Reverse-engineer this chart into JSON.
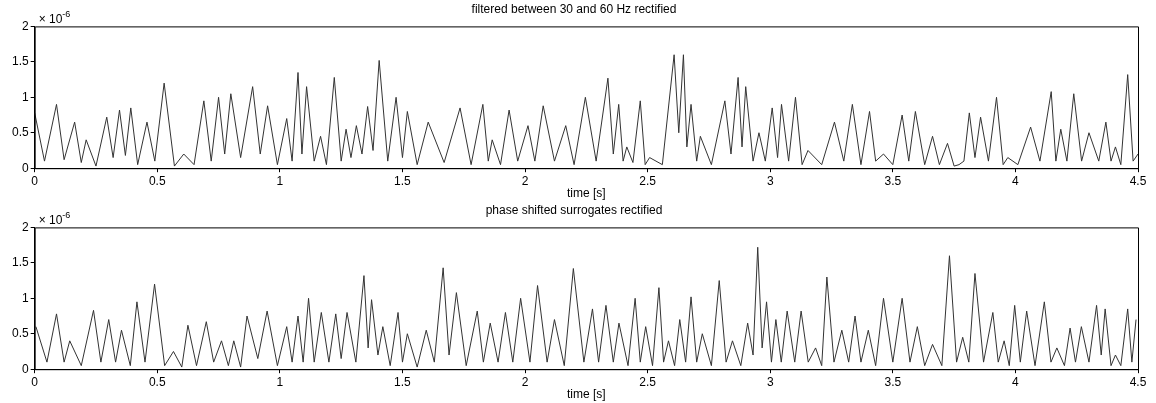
{
  "chart_data": [
    {
      "type": "line",
      "title": "filtered between 30 and 60 Hz rectified",
      "xlabel": "time [s]",
      "annotations": [
        "× 10$^{-6}$"
      ],
      "x": [
        0,
        0.04,
        0.089,
        0.12,
        0.163,
        0.19,
        0.21,
        0.25,
        0.294,
        0.32,
        0.346,
        0.37,
        0.392,
        0.42,
        0.458,
        0.49,
        0.528,
        0.57,
        0.608,
        0.65,
        0.69,
        0.72,
        0.75,
        0.775,
        0.8,
        0.84,
        0.889,
        0.92,
        0.95,
        0.99,
        1.028,
        1.05,
        1.074,
        1.09,
        1.109,
        1.14,
        1.166,
        1.19,
        1.222,
        1.25,
        1.27,
        1.29,
        1.312,
        1.335,
        1.358,
        1.38,
        1.405,
        1.44,
        1.474,
        1.5,
        1.52,
        1.56,
        1.605,
        1.67,
        1.735,
        1.78,
        1.828,
        1.85,
        1.866,
        1.9,
        1.935,
        1.97,
        2.012,
        2.04,
        2.074,
        2.12,
        2.166,
        2.2,
        2.246,
        2.29,
        2.338,
        2.36,
        2.382,
        2.4,
        2.415,
        2.44,
        2.47,
        2.49,
        2.508,
        2.56,
        2.608,
        2.627,
        2.646,
        2.66,
        2.677,
        2.7,
        2.715,
        2.76,
        2.815,
        2.84,
        2.869,
        2.885,
        2.9,
        2.93,
        2.954,
        2.98,
        3.008,
        3.03,
        3.046,
        3.075,
        3.103,
        3.13,
        3.154,
        3.21,
        3.262,
        3.3,
        3.335,
        3.37,
        3.405,
        3.43,
        3.462,
        3.5,
        3.538,
        3.565,
        3.592,
        3.63,
        3.662,
        3.69,
        3.723,
        3.75,
        3.77,
        3.79,
        3.812,
        3.835,
        3.858,
        3.89,
        3.923,
        3.95,
        3.969,
        4.01,
        4.062,
        4.1,
        4.146,
        4.165,
        4.185,
        4.21,
        4.238,
        4.27,
        4.3,
        4.34,
        4.369,
        4.39,
        4.408,
        4.43,
        4.458,
        4.48,
        4.5
      ],
      "series": [
        {
          "color": "#333333",
          "values": [
            0.78,
            0.1,
            0.9,
            0.12,
            0.65,
            0.08,
            0.4,
            0.03,
            0.72,
            0.15,
            0.82,
            0.18,
            0.85,
            0.05,
            0.65,
            0.1,
            1.2,
            0.03,
            0.2,
            0.05,
            0.95,
            0.1,
            1.0,
            0.2,
            1.05,
            0.15,
            1.15,
            0.2,
            0.88,
            0.05,
            0.7,
            0.1,
            1.35,
            0.2,
            1.15,
            0.1,
            0.45,
            0.05,
            1.28,
            0.1,
            0.55,
            0.15,
            0.6,
            0.2,
            0.87,
            0.25,
            1.52,
            0.1,
            1.0,
            0.15,
            0.8,
            0.05,
            0.65,
            0.08,
            0.85,
            0.05,
            0.9,
            0.1,
            0.4,
            0.05,
            0.82,
            0.1,
            0.6,
            0.1,
            0.88,
            0.1,
            0.6,
            0.05,
            1.0,
            0.1,
            1.27,
            0.2,
            0.9,
            0.1,
            0.3,
            0.08,
            0.95,
            0.05,
            0.15,
            0.05,
            1.6,
            0.5,
            1.6,
            0.3,
            0.9,
            0.1,
            0.45,
            0.05,
            0.95,
            0.2,
            1.28,
            0.3,
            1.15,
            0.1,
            0.5,
            0.1,
            0.85,
            0.15,
            0.9,
            0.1,
            1.0,
            0.05,
            0.25,
            0.05,
            0.65,
            0.1,
            0.9,
            0.05,
            0.8,
            0.1,
            0.2,
            0.05,
            0.75,
            0.1,
            0.8,
            0.05,
            0.45,
            0.05,
            0.35,
            0.03,
            0.05,
            0.1,
            0.78,
            0.15,
            0.72,
            0.1,
            1.0,
            0.05,
            0.15,
            0.05,
            0.58,
            0.1,
            1.08,
            0.1,
            0.55,
            0.1,
            1.05,
            0.1,
            0.5,
            0.1,
            0.65,
            0.1,
            0.3,
            0.05,
            1.32,
            0.1,
            0.2
          ]
        }
      ],
      "xlim": [
        0,
        4.5
      ],
      "xticks": [
        0,
        0.5,
        1,
        1.5,
        2,
        2.5,
        3,
        3.5,
        4,
        4.5
      ],
      "ylim": [
        0,
        2
      ],
      "yticks": [
        0,
        0.5,
        1,
        1.5,
        2
      ],
      "grid": false,
      "legend": false,
      "marker": "none",
      "line_style": "solid"
    },
    {
      "type": "line",
      "title": "phase shifted surrogates rectified",
      "xlabel": "time [s]",
      "annotations": [
        "× 10$^{-6}$"
      ],
      "x": [
        0.005,
        0.05,
        0.089,
        0.12,
        0.143,
        0.19,
        0.24,
        0.27,
        0.302,
        0.33,
        0.354,
        0.39,
        0.417,
        0.45,
        0.489,
        0.53,
        0.566,
        0.6,
        0.625,
        0.66,
        0.7,
        0.73,
        0.762,
        0.79,
        0.812,
        0.84,
        0.866,
        0.91,
        0.948,
        0.99,
        1.028,
        1.05,
        1.074,
        1.095,
        1.117,
        1.14,
        1.169,
        1.2,
        1.228,
        1.25,
        1.274,
        1.31,
        1.343,
        1.36,
        1.374,
        1.4,
        1.42,
        1.45,
        1.482,
        1.5,
        1.52,
        1.56,
        1.597,
        1.63,
        1.666,
        1.69,
        1.72,
        1.76,
        1.805,
        1.83,
        1.858,
        1.89,
        1.92,
        1.95,
        1.982,
        2.02,
        2.051,
        2.09,
        2.12,
        2.16,
        2.197,
        2.24,
        2.275,
        2.3,
        2.33,
        2.36,
        2.383,
        2.42,
        2.449,
        2.47,
        2.492,
        2.52,
        2.546,
        2.565,
        2.585,
        2.61,
        2.631,
        2.655,
        2.677,
        2.7,
        2.723,
        2.76,
        2.792,
        2.82,
        2.846,
        2.88,
        2.908,
        2.93,
        2.949,
        2.967,
        2.985,
        3.005,
        3.023,
        3.045,
        3.069,
        3.1,
        3.126,
        3.155,
        3.185,
        3.21,
        3.231,
        3.26,
        3.292,
        3.32,
        3.346,
        3.37,
        3.4,
        3.43,
        3.462,
        3.5,
        3.538,
        3.57,
        3.6,
        3.63,
        3.662,
        3.7,
        3.731,
        3.76,
        3.785,
        3.81,
        3.835,
        3.87,
        3.908,
        3.93,
        3.954,
        3.975,
        3.997,
        4.02,
        4.046,
        4.08,
        4.118,
        4.145,
        4.169,
        4.2,
        4.223,
        4.245,
        4.269,
        4.3,
        4.331,
        4.35,
        4.366,
        4.39,
        4.408,
        4.43,
        4.458,
        4.475,
        4.492
      ],
      "series": [
        {
          "color": "#333333",
          "values": [
            0.6,
            0.1,
            0.78,
            0.1,
            0.4,
            0.05,
            0.83,
            0.1,
            0.7,
            0.1,
            0.55,
            0.05,
            0.95,
            0.1,
            1.2,
            0.05,
            0.25,
            0.03,
            0.62,
            0.05,
            0.67,
            0.1,
            0.4,
            0.05,
            0.4,
            0.03,
            0.75,
            0.15,
            0.82,
            0.05,
            0.6,
            0.1,
            0.75,
            0.1,
            1.0,
            0.1,
            0.8,
            0.1,
            0.78,
            0.15,
            0.8,
            0.1,
            1.32,
            0.3,
            0.98,
            0.2,
            0.6,
            0.05,
            0.8,
            0.1,
            0.5,
            0.03,
            0.55,
            0.1,
            1.43,
            0.2,
            1.08,
            0.05,
            0.82,
            0.1,
            0.65,
            0.1,
            0.8,
            0.1,
            1.0,
            0.1,
            1.18,
            0.1,
            0.7,
            0.05,
            1.42,
            0.1,
            0.85,
            0.1,
            0.9,
            0.1,
            0.65,
            0.05,
            1.0,
            0.1,
            0.6,
            0.05,
            1.15,
            0.1,
            0.4,
            0.05,
            0.7,
            0.1,
            1.02,
            0.1,
            0.5,
            0.05,
            1.25,
            0.1,
            0.4,
            0.05,
            0.65,
            0.2,
            1.72,
            0.3,
            0.95,
            0.1,
            0.7,
            0.1,
            0.82,
            0.1,
            0.82,
            0.1,
            0.3,
            0.05,
            1.3,
            0.1,
            0.55,
            0.1,
            0.75,
            0.1,
            0.55,
            0.05,
            1.0,
            0.1,
            1.0,
            0.1,
            0.6,
            0.05,
            0.35,
            0.05,
            1.6,
            0.1,
            0.45,
            0.1,
            1.35,
            0.1,
            0.8,
            0.1,
            0.4,
            0.05,
            0.9,
            0.1,
            0.82,
            0.05,
            0.95,
            0.1,
            0.3,
            0.05,
            0.58,
            0.1,
            0.6,
            0.1,
            0.9,
            0.2,
            0.85,
            0.05,
            0.2,
            0.05,
            0.85,
            0.1,
            0.7
          ]
        }
      ],
      "xlim": [
        0,
        4.5
      ],
      "xticks": [
        0,
        0.5,
        1,
        1.5,
        2,
        2.5,
        3,
        3.5,
        4,
        4.5
      ],
      "ylim": [
        0,
        2
      ],
      "yticks": [
        0,
        0.5,
        1,
        1.5,
        2
      ],
      "grid": false,
      "legend": false,
      "marker": "none",
      "line_style": "solid"
    }
  ]
}
